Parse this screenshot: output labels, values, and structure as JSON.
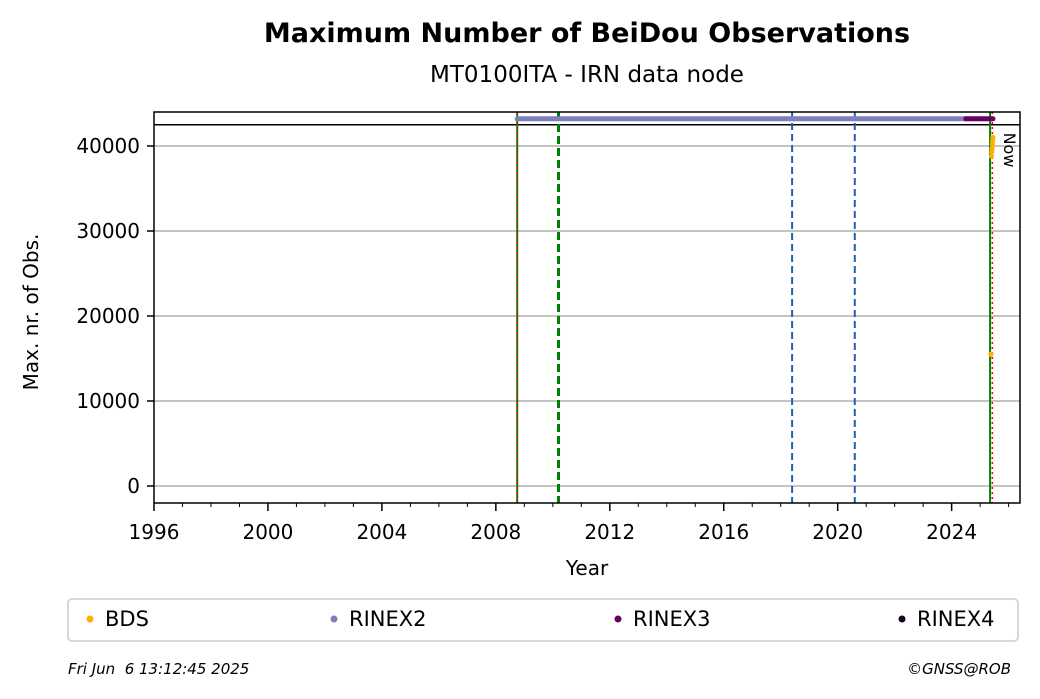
{
  "chart_data": {
    "type": "scatter",
    "title": "Maximum Number of BeiDou Observations",
    "subtitle": "MT0100ITA - IRN data node",
    "xlabel": "Year",
    "ylabel": "Max. nr. of Obs.",
    "xlim": [
      1996,
      2026.4
    ],
    "ylim": [
      -2000,
      44000
    ],
    "x_ticks": [
      1996,
      2000,
      2004,
      2008,
      2012,
      2016,
      2020,
      2024
    ],
    "x_tick_labels": [
      "1996",
      "2000",
      "2004",
      "2008",
      "2012",
      "2016",
      "2020",
      "2024"
    ],
    "y_ticks": [
      0,
      10000,
      20000,
      30000,
      40000
    ],
    "y_tick_labels": [
      "0",
      "10000",
      "20000",
      "30000",
      "40000"
    ],
    "grid": "horizontal",
    "top_band_y": 42500,
    "now_label": "Now",
    "vertical_lines": [
      {
        "x": 2008.75,
        "color": "#008000",
        "style": "solid"
      },
      {
        "x": 2008.75,
        "color": "#ff0000",
        "style": "dotted"
      },
      {
        "x": 2010.2,
        "color": "#008000",
        "style": "dashed"
      },
      {
        "x": 2018.4,
        "color": "#1f5fb4",
        "style": "dashed"
      },
      {
        "x": 2020.6,
        "color": "#1f5fb4",
        "style": "dashed"
      },
      {
        "x": 2025.35,
        "color": "#008000",
        "style": "solid"
      },
      {
        "x": 2025.43,
        "color": "#ff0000",
        "style": "dotted"
      }
    ],
    "series": [
      {
        "name": "BDS",
        "color": "#ffb000",
        "points": [
          [
            2025.38,
            15500
          ],
          [
            2025.4,
            38800
          ],
          [
            2025.41,
            39300
          ],
          [
            2025.42,
            39700
          ],
          [
            2025.43,
            40200
          ],
          [
            2025.44,
            40600
          ],
          [
            2025.45,
            41000
          ]
        ]
      },
      {
        "name": "RINEX2",
        "color": "#7f7fbf",
        "segments": [
          [
            2008.75,
            2024.5
          ]
        ],
        "y": 43200
      },
      {
        "name": "RINEX3",
        "color": "#6a0060",
        "segments": [
          [
            2024.5,
            2025.45
          ]
        ],
        "y": 43200
      },
      {
        "name": "RINEX4",
        "color": "#1a0020",
        "segments": [],
        "y": 43200
      }
    ],
    "legend_placement": "bottom"
  },
  "footer": {
    "timestamp": "Fri Jun  6 13:12:45 2025",
    "copyright": "©GNSS@ROB"
  }
}
